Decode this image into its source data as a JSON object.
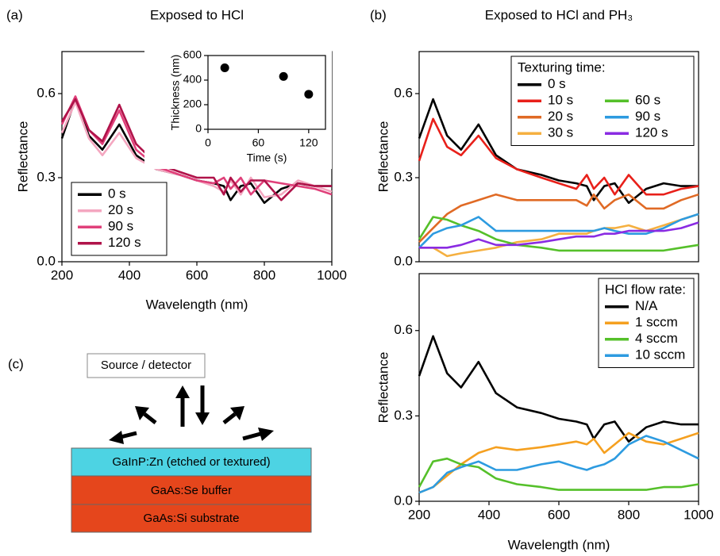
{
  "chart_data": [
    {
      "type": "line",
      "label": "(a)",
      "title": "Exposed to HCl",
      "xlabel": "Wavelength (nm)",
      "ylabel": "Reflectance",
      "xlim": [
        200,
        1000
      ],
      "xticks": [
        200,
        400,
        600,
        800,
        1000
      ],
      "ylim": [
        0,
        0.75
      ],
      "yticks": [
        {
          "value": 0,
          "label": "0.0"
        },
        0.3,
        0.6
      ],
      "legend": "lower left",
      "x": [
        200,
        240,
        280,
        320,
        370,
        420,
        480,
        550,
        600,
        650,
        680,
        700,
        730,
        760,
        800,
        850,
        900,
        950,
        1000
      ],
      "series": [
        {
          "name": "0 s",
          "color": "#000000",
          "values": [
            0.44,
            0.58,
            0.45,
            0.4,
            0.49,
            0.38,
            0.33,
            0.31,
            0.29,
            0.28,
            0.27,
            0.22,
            0.27,
            0.28,
            0.21,
            0.26,
            0.28,
            0.27,
            0.27
          ]
        },
        {
          "name": "20 s",
          "color": "#f4a7c0",
          "values": [
            0.46,
            0.57,
            0.44,
            0.38,
            0.46,
            0.37,
            0.33,
            0.31,
            0.29,
            0.27,
            0.25,
            0.29,
            0.24,
            0.3,
            0.23,
            0.24,
            0.29,
            0.27,
            0.25
          ]
        },
        {
          "name": "90 s",
          "color": "#e0407a",
          "values": [
            0.49,
            0.59,
            0.47,
            0.42,
            0.54,
            0.4,
            0.34,
            0.31,
            0.29,
            0.28,
            0.3,
            0.26,
            0.3,
            0.24,
            0.29,
            0.28,
            0.27,
            0.26,
            0.24
          ]
        },
        {
          "name": "120 s",
          "color": "#b0134a",
          "values": [
            0.5,
            0.58,
            0.47,
            0.43,
            0.56,
            0.42,
            0.35,
            0.32,
            0.3,
            0.3,
            0.24,
            0.3,
            0.25,
            0.29,
            0.29,
            0.22,
            0.28,
            0.27,
            0.27
          ]
        }
      ]
    },
    {
      "type": "scatter",
      "xlabel": "Time (s)",
      "ylabel": "Thickness (nm)",
      "xlim": [
        0,
        140
      ],
      "xticks": [
        0,
        60,
        120
      ],
      "ylim": [
        0,
        600
      ],
      "yticks": [
        0,
        200,
        400,
        600
      ],
      "color": "#000000",
      "x": [
        20,
        90,
        120
      ],
      "values": [
        500,
        430,
        285
      ]
    },
    {
      "type": "line",
      "label": "(b)",
      "title": "Exposed to HCl and PH₃",
      "ylabel": "Reflectance",
      "xlim": [
        200,
        1000
      ],
      "ylim": [
        0,
        0.75
      ],
      "yticks": [
        {
          "value": 0,
          "label": "0.0"
        },
        0.3,
        0.6
      ],
      "legend": "upper right",
      "legend_title": "Texturing time:",
      "legend_columns": 2,
      "x": [
        200,
        240,
        280,
        320,
        370,
        420,
        480,
        550,
        600,
        650,
        680,
        700,
        730,
        760,
        800,
        850,
        900,
        950,
        1000
      ],
      "series": [
        {
          "name": "0 s",
          "color": "#000000",
          "values": [
            0.44,
            0.58,
            0.45,
            0.4,
            0.49,
            0.38,
            0.33,
            0.31,
            0.29,
            0.28,
            0.27,
            0.22,
            0.27,
            0.28,
            0.21,
            0.26,
            0.28,
            0.27,
            0.27
          ]
        },
        {
          "name": "10 s",
          "color": "#e8201a",
          "values": [
            0.36,
            0.51,
            0.41,
            0.38,
            0.45,
            0.37,
            0.33,
            0.3,
            0.28,
            0.26,
            0.31,
            0.26,
            0.3,
            0.24,
            0.31,
            0.24,
            0.24,
            0.26,
            0.27
          ]
        },
        {
          "name": "20 s",
          "color": "#e06a25",
          "values": [
            0.07,
            0.12,
            0.17,
            0.2,
            0.22,
            0.24,
            0.22,
            0.22,
            0.22,
            0.22,
            0.2,
            0.24,
            0.19,
            0.22,
            0.24,
            0.19,
            0.19,
            0.22,
            0.24
          ]
        },
        {
          "name": "30 s",
          "color": "#f5b040",
          "values": [
            0.05,
            0.05,
            0.02,
            0.03,
            0.04,
            0.05,
            0.07,
            0.08,
            0.1,
            0.1,
            0.1,
            0.11,
            0.12,
            0.12,
            0.13,
            0.11,
            0.13,
            0.15,
            0.17
          ]
        },
        {
          "name": "60 s",
          "color": "#55c02a",
          "values": [
            0.08,
            0.16,
            0.15,
            0.13,
            0.11,
            0.08,
            0.06,
            0.05,
            0.04,
            0.04,
            0.04,
            0.04,
            0.04,
            0.04,
            0.04,
            0.04,
            0.04,
            0.05,
            0.06
          ]
        },
        {
          "name": "90 s",
          "color": "#2d9be0",
          "values": [
            0.05,
            0.1,
            0.12,
            0.13,
            0.16,
            0.11,
            0.11,
            0.11,
            0.11,
            0.11,
            0.11,
            0.11,
            0.12,
            0.11,
            0.1,
            0.1,
            0.12,
            0.15,
            0.17
          ]
        },
        {
          "name": "120 s",
          "color": "#8a2be2",
          "values": [
            0.05,
            0.05,
            0.05,
            0.06,
            0.08,
            0.06,
            0.06,
            0.07,
            0.08,
            0.09,
            0.09,
            0.09,
            0.1,
            0.1,
            0.11,
            0.11,
            0.11,
            0.12,
            0.14
          ]
        }
      ]
    },
    {
      "type": "line",
      "xlabel": "Wavelength (nm)",
      "ylabel": "Reflectance",
      "xlim": [
        200,
        1000
      ],
      "xticks": [
        200,
        400,
        600,
        800,
        1000
      ],
      "ylim": [
        0,
        0.8
      ],
      "yticks": [
        {
          "value": 0,
          "label": "0.0"
        },
        0.3,
        0.6
      ],
      "legend": "upper right",
      "legend_title": "HCl flow rate:",
      "x": [
        200,
        240,
        280,
        320,
        370,
        420,
        480,
        550,
        600,
        650,
        680,
        700,
        730,
        760,
        800,
        850,
        900,
        950,
        1000
      ],
      "series": [
        {
          "name": "N/A",
          "color": "#000000",
          "values": [
            0.44,
            0.58,
            0.45,
            0.4,
            0.49,
            0.38,
            0.33,
            0.31,
            0.29,
            0.28,
            0.27,
            0.22,
            0.27,
            0.28,
            0.21,
            0.26,
            0.28,
            0.27,
            0.27
          ]
        },
        {
          "name": "1 sccm",
          "color": "#f5a020",
          "values": [
            0.03,
            0.05,
            0.09,
            0.13,
            0.17,
            0.19,
            0.18,
            0.19,
            0.2,
            0.21,
            0.2,
            0.22,
            0.17,
            0.2,
            0.24,
            0.21,
            0.2,
            0.22,
            0.24
          ]
        },
        {
          "name": "4 sccm",
          "color": "#55c02a",
          "values": [
            0.05,
            0.14,
            0.15,
            0.13,
            0.12,
            0.08,
            0.06,
            0.05,
            0.04,
            0.04,
            0.04,
            0.04,
            0.04,
            0.04,
            0.04,
            0.04,
            0.05,
            0.05,
            0.06
          ]
        },
        {
          "name": "10 sccm",
          "color": "#2d9be0",
          "values": [
            0.03,
            0.05,
            0.1,
            0.12,
            0.14,
            0.11,
            0.11,
            0.13,
            0.14,
            0.12,
            0.11,
            0.12,
            0.13,
            0.15,
            0.2,
            0.23,
            0.21,
            0.18,
            0.15
          ]
        }
      ]
    }
  ],
  "diagram": {
    "label": "(c)",
    "source": "Source / detector",
    "layers": [
      "GaInP:Zn (etched or textured)",
      "GaAs:Se buffer",
      "GaAs:Si substrate"
    ]
  }
}
